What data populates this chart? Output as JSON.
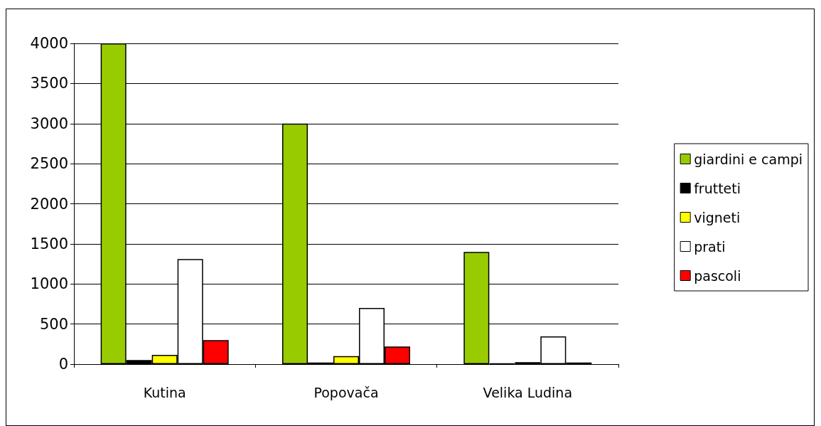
{
  "chart_data": {
    "type": "bar",
    "categories": [
      "Kutina",
      "Popovača",
      "Velika Ludina"
    ],
    "series": [
      {
        "name": "giardini e campi",
        "color": "#99cc00",
        "values": [
          4000,
          3000,
          1400
        ]
      },
      {
        "name": "frutteti",
        "color": "#000000",
        "values": [
          50,
          20,
          10
        ]
      },
      {
        "name": "vigneti",
        "color": "#ffff00",
        "values": [
          115,
          100,
          25
        ]
      },
      {
        "name": "prati",
        "color": "#ffffff",
        "values": [
          1310,
          700,
          345
        ]
      },
      {
        "name": "pascoli",
        "color": "#ff0000",
        "values": [
          300,
          220,
          20
        ]
      }
    ],
    "ylim": [
      0,
      4000
    ],
    "yticks": [
      0,
      500,
      1000,
      1500,
      2000,
      2500,
      3000,
      3500,
      4000
    ],
    "grid": "y",
    "legend": "right"
  }
}
